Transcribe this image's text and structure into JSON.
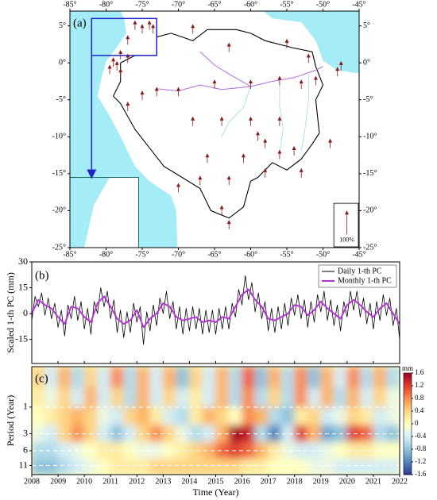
{
  "chart_data": [
    {
      "type": "map",
      "title": "(a)",
      "xlim": [
        -85,
        -45
      ],
      "ylim": [
        -25,
        7
      ],
      "xticks": [
        {
          "value": -85,
          "label": "-85°"
        },
        {
          "value": -80,
          "label": "-80°"
        },
        {
          "value": -75,
          "label": "-75°"
        },
        {
          "value": -70,
          "label": "-70°"
        },
        {
          "value": -65,
          "label": "-65°"
        },
        {
          "value": -60,
          "label": "-60°"
        },
        {
          "value": -55,
          "label": "-55°"
        },
        {
          "value": -50,
          "label": "-50°"
        },
        {
          "value": -45,
          "label": "-45°"
        }
      ],
      "yticks": [
        {
          "value": 5,
          "label": "5°"
        },
        {
          "value": 0,
          "label": "0°"
        },
        {
          "value": -5,
          "label": "-5°"
        },
        {
          "value": -10,
          "label": "-10°"
        },
        {
          "value": -15,
          "label": "-15°"
        },
        {
          "value": -20,
          "label": "-20°"
        },
        {
          "value": -25,
          "label": "-25°"
        }
      ],
      "x": [
        -76,
        -75,
        -74,
        -73.5,
        -77,
        -78,
        -79,
        -78.5,
        -78,
        -79.5,
        -77,
        -68,
        -63,
        -55,
        -52,
        -47.5,
        -48,
        -51,
        -53,
        -56,
        -60,
        -65,
        -70,
        -73,
        -75,
        -77,
        -68,
        -64,
        -60,
        -56,
        -54,
        -49,
        -58,
        -61,
        -66,
        -63,
        -58,
        -53,
        -67,
        -70,
        -64,
        -63,
        -56,
        -59
      ],
      "y": [
        5,
        4.5,
        5,
        4.5,
        3,
        1,
        0,
        -0.5,
        -1.5,
        -1,
        0.5,
        4.5,
        2,
        2.5,
        0.5,
        -0.5,
        -1.3,
        -2.5,
        -3,
        -2.5,
        -3,
        -3,
        -4,
        -4,
        -4.5,
        -6,
        -8,
        -8,
        -8,
        -8,
        -12,
        -11,
        -11,
        -13,
        -13,
        -16,
        -15,
        -15,
        -16,
        -17,
        -20,
        -22,
        -12.5,
        -10
      ],
      "color": "#8b1a1a",
      "annotation": "100%"
    },
    {
      "type": "line",
      "title": "(b)",
      "ylabel": "Scaled 1-th PC (mm)",
      "xlim": [
        2008,
        2022
      ],
      "ylim": [
        -29,
        30
      ],
      "yticks": [
        -15,
        0,
        15,
        30
      ],
      "legend": "upper right",
      "series": [
        {
          "name": "Daily 1-th PC",
          "color": "#000000",
          "x": [
            2008,
            2008.125,
            2008.25,
            2008.375,
            2008.5,
            2008.625,
            2008.75,
            2008.875,
            2009,
            2009.125,
            2009.25,
            2009.375,
            2009.5,
            2009.625,
            2009.75,
            2009.875,
            2010,
            2010.125,
            2010.25,
            2010.375,
            2010.5,
            2010.625,
            2010.75,
            2010.875,
            2011,
            2011.125,
            2011.25,
            2011.375,
            2011.5,
            2011.625,
            2011.75,
            2011.875,
            2012,
            2012.125,
            2012.25,
            2012.375,
            2012.5,
            2012.625,
            2012.75,
            2012.875,
            2013,
            2013.125,
            2013.25,
            2013.375,
            2013.5,
            2013.625,
            2013.75,
            2013.875,
            2014,
            2014.125,
            2014.25,
            2014.375,
            2014.5,
            2014.625,
            2014.75,
            2014.875,
            2015,
            2015.125,
            2015.25,
            2015.375,
            2015.5,
            2015.625,
            2015.75,
            2015.875,
            2016,
            2016.125,
            2016.25,
            2016.375,
            2016.5,
            2016.625,
            2016.75,
            2016.875,
            2017,
            2017.125,
            2017.25,
            2017.375,
            2017.5,
            2017.625,
            2017.75,
            2017.875,
            2018,
            2018.125,
            2018.25,
            2018.375,
            2018.5,
            2018.625,
            2018.75,
            2018.875,
            2019,
            2019.125,
            2019.25,
            2019.375,
            2019.5,
            2019.625,
            2019.75,
            2019.875,
            2020,
            2020.125,
            2020.25,
            2020.375,
            2020.5,
            2020.625,
            2020.75,
            2020.875,
            2021,
            2021.125,
            2021.25,
            2021.375,
            2021.5,
            2021.625,
            2021.75,
            2021.875,
            2022
          ],
          "values": [
            -4,
            10,
            4,
            12,
            -1,
            9,
            -3,
            6,
            -8,
            2,
            -13,
            5,
            -3,
            10,
            -4,
            7,
            -9,
            3,
            -12,
            7,
            0,
            15,
            4,
            13,
            -3,
            8,
            -11,
            2,
            -14,
            1,
            -11,
            6,
            -5,
            4,
            -18,
            1,
            -10,
            5,
            -7,
            9,
            0,
            13,
            -3,
            7,
            -9,
            4,
            -12,
            3,
            -10,
            4,
            -9,
            3,
            -12,
            2,
            -11,
            2,
            -12,
            3,
            -9,
            4,
            -9,
            6,
            -2,
            14,
            5,
            22,
            8,
            18,
            1,
            12,
            -3,
            7,
            -10,
            3,
            -11,
            4,
            -9,
            6,
            -7,
            9,
            -1,
            11,
            -3,
            8,
            -8,
            7,
            -5,
            11,
            1,
            13,
            -4,
            8,
            -7,
            5,
            -10,
            7,
            -2,
            13,
            2,
            13,
            -2,
            9,
            -6,
            6,
            -9,
            7,
            -4,
            11,
            -1,
            9,
            -7,
            3,
            -15
          ]
        },
        {
          "name": "Monthly 1-th PC",
          "color": "#b833d6",
          "x": [
            2008,
            2008.25,
            2008.5,
            2008.75,
            2009,
            2009.25,
            2009.5,
            2009.75,
            2010,
            2010.25,
            2010.5,
            2010.75,
            2011,
            2011.25,
            2011.5,
            2011.75,
            2012,
            2012.25,
            2012.5,
            2012.75,
            2013,
            2013.25,
            2013.5,
            2013.75,
            2014,
            2014.25,
            2014.5,
            2014.75,
            2015,
            2015.25,
            2015.5,
            2015.75,
            2016,
            2016.25,
            2016.5,
            2016.75,
            2017,
            2017.25,
            2017.5,
            2017.75,
            2018,
            2018.25,
            2018.5,
            2018.75,
            2019,
            2019.25,
            2019.5,
            2019.75,
            2020,
            2020.25,
            2020.5,
            2020.75,
            2021,
            2021.25,
            2021.5,
            2021.75,
            2022
          ],
          "values": [
            0,
            8,
            5,
            3,
            -2,
            -6,
            4,
            3,
            -2,
            -5,
            6,
            10,
            4,
            -3,
            -6,
            -4,
            2,
            -8,
            -3,
            0,
            6,
            4,
            -2,
            -4,
            -3,
            -2,
            -5,
            -4,
            -5,
            -2,
            -3,
            4,
            11,
            14,
            8,
            4,
            -3,
            -4,
            -2,
            0,
            5,
            4,
            -1,
            2,
            7,
            3,
            0,
            -3,
            5,
            8,
            5,
            1,
            -2,
            3,
            6,
            0,
            -6
          ]
        }
      ]
    },
    {
      "type": "heatmap",
      "title": "(c)",
      "xlabel": "Time (Year)",
      "ylabel": "Period (Year)",
      "xlim": [
        2008,
        2022
      ],
      "xticks": [
        2008,
        2009,
        2010,
        2011,
        2012,
        2013,
        2014,
        2015,
        2016,
        2017,
        2018,
        2019,
        2020,
        2021,
        2022
      ],
      "ylim": [
        0.19,
        16
      ],
      "yticks": [
        1,
        3,
        6,
        11
      ],
      "log_y": true,
      "grid": true,
      "x": [
        2008.25,
        2008.75,
        2009.25,
        2009.75,
        2010.25,
        2010.75,
        2011.25,
        2011.75,
        2012.25,
        2012.75,
        2013.25,
        2013.75,
        2014.25,
        2014.75,
        2015.25,
        2015.75,
        2016.25,
        2016.75,
        2017.25,
        2017.75,
        2018.25,
        2018.75,
        2019.25,
        2019.75,
        2020.25,
        2020.75,
        2021.25,
        2021.75
      ],
      "y": [
        0.3,
        0.7,
        1.5,
        3,
        6,
        12
      ],
      "z": [
        [
          0.4,
          -0.4,
          0.6,
          -0.6,
          0.4,
          -0.4,
          0.8,
          -0.6,
          0.6,
          -0.4,
          0.6,
          -0.8,
          0.4,
          -0.4,
          0.6,
          -0.6,
          1.0,
          -0.8,
          0.6,
          -0.6,
          0.8,
          -0.8,
          0.6,
          -0.4,
          0.8,
          -0.6,
          0.6,
          -0.6
        ],
        [
          0.2,
          -0.2,
          0.4,
          -0.4,
          0.6,
          -0.4,
          0.4,
          -0.6,
          0.6,
          -0.4,
          0.4,
          -0.4,
          0.2,
          -0.4,
          0.6,
          -0.6,
          0.8,
          -0.6,
          0.4,
          -0.6,
          0.8,
          -0.4,
          0.6,
          -0.6,
          0.6,
          -0.4,
          0.4,
          -0.2
        ],
        [
          0,
          0.2,
          0.4,
          0.6,
          0.4,
          -0.2,
          -0.4,
          0.4,
          0.6,
          0.2,
          -0.4,
          -0.6,
          0.2,
          0.6,
          0.4,
          0,
          0.8,
          0.6,
          -0.6,
          -0.8,
          0.2,
          0.4,
          -0.4,
          -0.2,
          0.4,
          0.2,
          -0.4,
          -0.2
        ],
        [
          -0.2,
          -0.4,
          0.4,
          0.8,
          0.4,
          -0.4,
          -0.8,
          -0.4,
          0.4,
          0.8,
          0.4,
          -0.2,
          -0.6,
          -0.4,
          0.6,
          1.6,
          1.4,
          -0.6,
          -1.2,
          -0.4,
          1.2,
          0.6,
          -1.0,
          -0.8,
          1.2,
          1.0,
          -0.6,
          -0.8
        ],
        [
          -0.6,
          -0.6,
          -0.4,
          -0.2,
          0,
          0.2,
          0.2,
          0,
          -0.2,
          -0.2,
          0,
          0.2,
          0.4,
          0.6,
          1.0,
          1.2,
          1.0,
          0.6,
          0.2,
          -0.2,
          -0.4,
          -0.4,
          -0.2,
          0,
          0.2,
          0.2,
          0,
          0
        ],
        [
          -0.8,
          -0.8,
          -0.6,
          -0.4,
          -0.2,
          0,
          0.2,
          0.2,
          0.2,
          0.4,
          0.4,
          0.4,
          0.4,
          0.4,
          0.4,
          0.4,
          0.2,
          0.2,
          0,
          0,
          0,
          -0.2,
          -0.2,
          -0.4,
          -0.4,
          -0.4,
          -0.4,
          -0.4
        ]
      ],
      "colorscale": [
        "#313695",
        "#4575b4",
        "#74add1",
        "#abd9e9",
        "#e0f3f8",
        "#ffffbf",
        "#fee090",
        "#fdae61",
        "#f46d43",
        "#d73027",
        "#a50026"
      ],
      "zlim": [
        -1.6,
        1.6
      ],
      "zticks": [
        1.6,
        1.2,
        0.8,
        0.4,
        0,
        -0.4,
        -0.8,
        -1.2,
        -1.6
      ],
      "colorbar_label": "mm"
    }
  ]
}
